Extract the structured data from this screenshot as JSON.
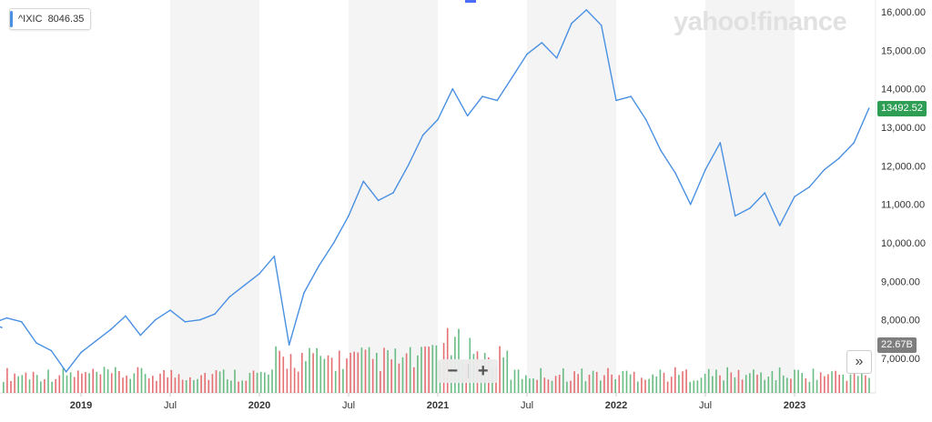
{
  "legend": {
    "symbol": "^IXIC",
    "value": "8046.35",
    "color": "#4a90e2"
  },
  "brand": {
    "watermark": "yahoo!finance"
  },
  "badges": {
    "last_price": "13492.52",
    "last_volume": "22.67B"
  },
  "controls": {
    "zoom_out": "−",
    "zoom_in": "+",
    "scroll_right": "»"
  },
  "colors": {
    "line": "#4a90e2",
    "vol_up": "#4fb06e",
    "vol_down": "#e0565b",
    "year_band": "#f4f4f4",
    "price_badge": "#2e9e55",
    "vol_badge": "#7e7e7e"
  },
  "chart_data": {
    "type": "line",
    "series": [
      {
        "name": "^IXIC",
        "x": [
          "2018-06",
          "2018-07",
          "2018-08",
          "2018-09",
          "2018-10",
          "2018-11",
          "2018-12",
          "2019-01",
          "2019-02",
          "2019-03",
          "2019-04",
          "2019-05",
          "2019-06",
          "2019-07",
          "2019-08",
          "2019-09",
          "2019-10",
          "2019-11",
          "2019-12",
          "2020-01",
          "2020-02",
          "2020-03",
          "2020-04",
          "2020-05",
          "2020-06",
          "2020-07",
          "2020-08",
          "2020-09",
          "2020-10",
          "2020-11",
          "2020-12",
          "2021-01",
          "2021-02",
          "2021-03",
          "2021-04",
          "2021-05",
          "2021-06",
          "2021-07",
          "2021-08",
          "2021-09",
          "2021-10",
          "2021-11",
          "2021-12",
          "2022-01",
          "2022-02",
          "2022-03",
          "2022-04",
          "2022-05",
          "2022-06",
          "2022-07",
          "2022-08",
          "2022-09",
          "2022-10",
          "2022-11",
          "2022-12",
          "2023-01",
          "2023-02",
          "2023-03",
          "2023-04",
          "2023-05",
          "2023-06"
        ],
        "values": [
          7800,
          7900,
          8050,
          7950,
          7400,
          7200,
          6650,
          7150,
          7450,
          7750,
          8100,
          7600,
          8000,
          8250,
          7950,
          8000,
          8150,
          8600,
          8900,
          9200,
          9650,
          7350,
          8700,
          9400,
          10000,
          10700,
          11600,
          11100,
          11300,
          12000,
          12800,
          13200,
          14000,
          13300,
          13800,
          13700,
          14300,
          14900,
          15200,
          14800,
          15700,
          16050,
          15650,
          13700,
          13800,
          13200,
          12400,
          11800,
          11000,
          11900,
          12600,
          10700,
          10900,
          11300,
          10450,
          11200,
          11450,
          11900,
          12200,
          12600,
          13492.52
        ],
        "ylim": [
          6000,
          16200
        ],
        "yticks": [
          "16,000.00",
          "15,000.00",
          "14,000.00",
          "13,000.00",
          "12,000.00",
          "11,000.00",
          "10,000.00",
          "9,000.00",
          "8,000.00",
          "7,000.00"
        ]
      }
    ],
    "volume": {
      "unit": "B",
      "last": 22.67
    },
    "x_tick_labels": [
      "2019",
      "Jul",
      "2020",
      "Jul",
      "2021",
      "Jul",
      "2022",
      "Jul",
      "2023"
    ],
    "grid": false,
    "legend_position": "top-left"
  }
}
